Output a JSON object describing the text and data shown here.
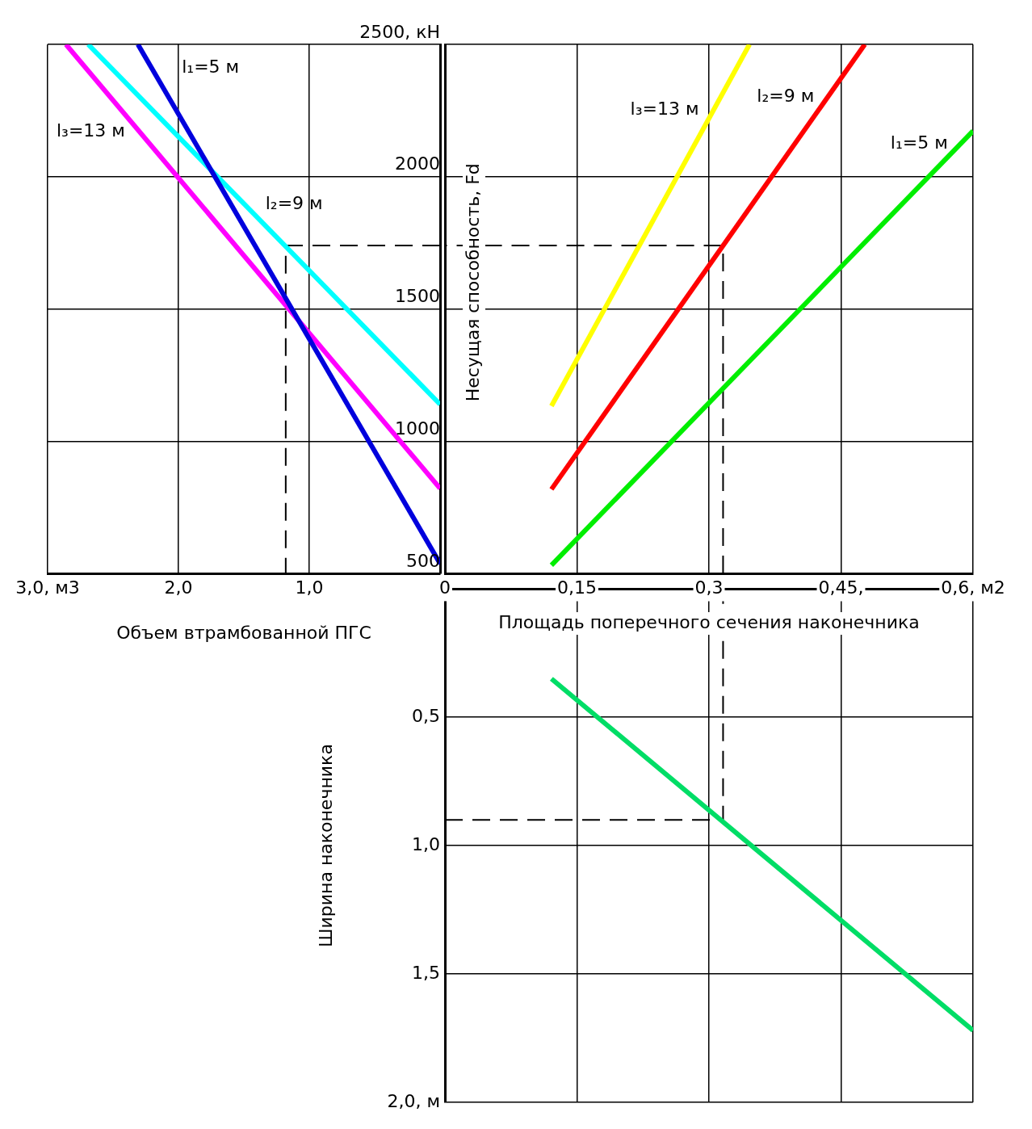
{
  "chart_data": [
    {
      "type": "line",
      "xlabel": "Объем втрамбованной ПГС",
      "xlim": [
        3.0,
        0
      ],
      "xticks": [
        {
          "value": 3,
          "label": "3,0, м3"
        },
        {
          "value": 2,
          "label": "2,0"
        },
        {
          "value": 1,
          "label": "1,0"
        },
        {
          "value": 0,
          "label": null
        }
      ],
      "ylim": [
        500,
        2500
      ],
      "yticks": [
        {
          "value": 500,
          "label": null
        },
        {
          "value": 1000,
          "label": null
        },
        {
          "value": 1500,
          "label": null
        },
        {
          "value": 2000,
          "label": null
        },
        {
          "value": 2500,
          "label": null
        }
      ],
      "grid": true,
      "tick_labels": "x",
      "series": [
        {
          "color": "#0000dd",
          "x": [
            0,
            2.31
          ],
          "values": [
            537,
            2500
          ]
        },
        {
          "color": "#ff00ff",
          "x": [
            0,
            2.86
          ],
          "values": [
            821,
            2500
          ]
        },
        {
          "color": "#00ffff",
          "x": [
            0,
            2.69
          ],
          "values": [
            1139,
            2500
          ]
        },
        {
          "color": "#000000",
          "line_style": "dashed",
          "x": [
            0,
            1.18,
            1.18
          ],
          "values": [
            1740,
            1740,
            500
          ]
        }
      ],
      "annotations": [
        "l₁=5 м",
        "l₃=13 м",
        "l₂=9 м"
      ]
    },
    {
      "type": "line",
      "xlabel": "Площадь поперечного сечения наконечника",
      "ylabel": "Несущая способность, Fd",
      "xlim": [
        0,
        0.6
      ],
      "xticks": [
        {
          "value": 0,
          "label": "0"
        },
        {
          "value": 0.15,
          "label": "0,15"
        },
        {
          "value": 0.3,
          "label": "0,3"
        },
        {
          "value": 0.45,
          "label": "0,45,"
        },
        {
          "value": 0.6,
          "label": "0,6, м2"
        }
      ],
      "ylim": [
        500,
        2500
      ],
      "yticks": [
        500,
        1000,
        1500,
        2000,
        {
          "value": 2500,
          "label": "2500, кН"
        }
      ],
      "grid": true,
      "series": [
        {
          "color": "#ffff00",
          "x": [
            0.121,
            0.346
          ],
          "values": [
            1133,
            2500
          ]
        },
        {
          "color": "#ff0000",
          "x": [
            0.121,
            0.477
          ],
          "values": [
            818,
            2500
          ]
        },
        {
          "color": "#00ee00",
          "x": [
            0.121,
            0.6
          ],
          "values": [
            531,
            2173
          ]
        },
        {
          "color": "#000000",
          "line_style": "dashed",
          "x": [
            0.316,
            0.316,
            0
          ],
          "values": [
            500,
            1740,
            1740
          ]
        }
      ],
      "annotations": [
        "l₃=13 м",
        "l₂=9 м",
        "l₁=5 м"
      ]
    },
    {
      "type": "line",
      "ylabel": "Ширина наконечника",
      "xlim": [
        0,
        0.6
      ],
      "xticks": [
        {
          "value": 0,
          "label": null
        },
        {
          "value": 0.15,
          "label": null
        },
        {
          "value": 0.3,
          "label": null
        },
        {
          "value": 0.45,
          "label": null
        },
        {
          "value": 0.6,
          "label": null
        }
      ],
      "ylim": [
        2.0,
        0
      ],
      "yticks": [
        {
          "value": 0,
          "label": null
        },
        {
          "value": 0.5,
          "label": "0,5"
        },
        {
          "value": 1,
          "label": "1,0"
        },
        {
          "value": 1.5,
          "label": "1,5"
        },
        {
          "value": 2,
          "label": "2,0, м"
        }
      ],
      "grid": true,
      "tick_labels": "y",
      "series": [
        {
          "color": "#00dd66",
          "x": [
            0.121,
            0.6
          ],
          "values": [
            0.35,
            1.72
          ]
        },
        {
          "color": "#000000",
          "line_style": "dashed",
          "x": [
            0,
            0.316,
            0.316
          ],
          "values": [
            0.9,
            0.9,
            0
          ]
        }
      ]
    }
  ]
}
